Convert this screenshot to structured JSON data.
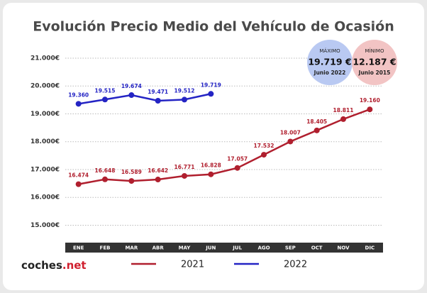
{
  "chart_data": {
    "type": "line",
    "title": "Evolución Precio Medio del Vehículo de Ocasión",
    "categories": [
      "ENE",
      "FEB",
      "MAR",
      "ABR",
      "MAY",
      "JUN",
      "JUL",
      "AGO",
      "SEP",
      "OCT",
      "NOV",
      "DIC"
    ],
    "series": [
      {
        "name": "2021",
        "color": "#b01f2e",
        "values": [
          16474,
          16648,
          16589,
          16642,
          16771,
          16828,
          17057,
          17532,
          18007,
          18405,
          18811,
          19160
        ],
        "value_labels": [
          "16.474",
          "16.648",
          "16.589",
          "16.642",
          "16.771",
          "16.828",
          "17.057",
          "17.532",
          "18.007",
          "18.405",
          "18.811",
          "19.160"
        ]
      },
      {
        "name": "2022",
        "color": "#2424c4",
        "values": [
          19360,
          19515,
          19674,
          19471,
          19512,
          19719,
          null,
          null,
          null,
          null,
          null,
          null
        ],
        "value_labels": [
          "19.360",
          "19.515",
          "19.674",
          "19.471",
          "19.512",
          "19.719",
          null,
          null,
          null,
          null,
          null,
          null
        ]
      }
    ],
    "ylim": [
      14400,
      21000
    ],
    "yticks": [
      {
        "value": 15000,
        "label": "15.000€"
      },
      {
        "value": 16000,
        "label": "16.000€"
      },
      {
        "value": 17000,
        "label": "17.000€"
      },
      {
        "value": 18000,
        "label": "18.000€"
      },
      {
        "value": 19000,
        "label": "19.000€"
      },
      {
        "value": 20000,
        "label": "20.000€"
      },
      {
        "value": 21000,
        "label": "21.000€"
      }
    ],
    "grid": true
  },
  "badges": [
    {
      "heading": "MÁXIMO",
      "amount": "19.719 €",
      "date": "Junio 2022",
      "color": "#b9c9f2"
    },
    {
      "heading": "MÍNIMO",
      "amount": "12.187 €",
      "date": "Junio 2015",
      "color": "#f2c4c4"
    }
  ],
  "logo": {
    "main": "coches",
    "suffix": ".net"
  }
}
